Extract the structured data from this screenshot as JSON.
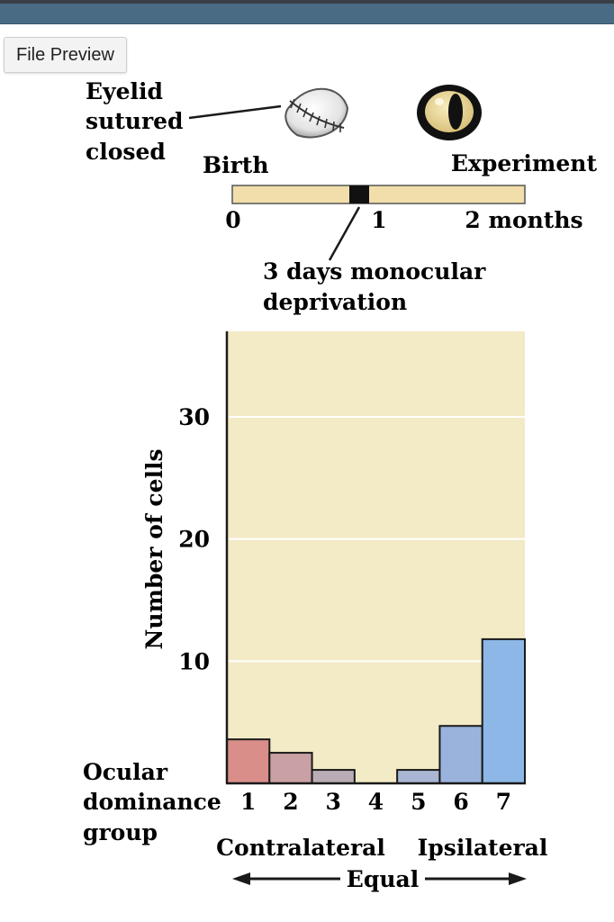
{
  "ui": {
    "file_preview_label": "File Preview",
    "accent_bar_color": "#4a6b84"
  },
  "figure": {
    "eyelid_label": [
      "Eyelid",
      "sutured",
      "closed"
    ],
    "eye_icons": [
      "sutured-eye-icon",
      "open-eye-icon"
    ],
    "timeline": {
      "start_label": "Birth",
      "end_label": "Experiment",
      "ticks": [
        "0",
        "1",
        "2 months"
      ],
      "deprivation_label": [
        "3 days monocular",
        "deprivation"
      ],
      "bar_color": "#f1deaa"
    }
  },
  "chart_data": {
    "type": "bar",
    "ylabel": "Number of cells",
    "xlabel": [
      "Ocular",
      "dominance",
      "group"
    ],
    "categories": [
      "1",
      "2",
      "3",
      "4",
      "5",
      "6",
      "7"
    ],
    "values": [
      3.6,
      2.5,
      1.1,
      0,
      1.1,
      4.7,
      11.8
    ],
    "bar_colors": [
      "#d98e8a",
      "#c9a0a4",
      "#b9acb4",
      "#b3b6c7",
      "#a9b5d2",
      "#99b3dc",
      "#8cb7e6"
    ],
    "ylim": [
      0,
      37
    ],
    "yticks": [
      "10",
      "20",
      "30"
    ],
    "grid": true,
    "plot_background": "#f3eac6",
    "group_labels": {
      "left": "Contralateral",
      "right": "Ipsilateral",
      "middle": "Equal"
    }
  }
}
